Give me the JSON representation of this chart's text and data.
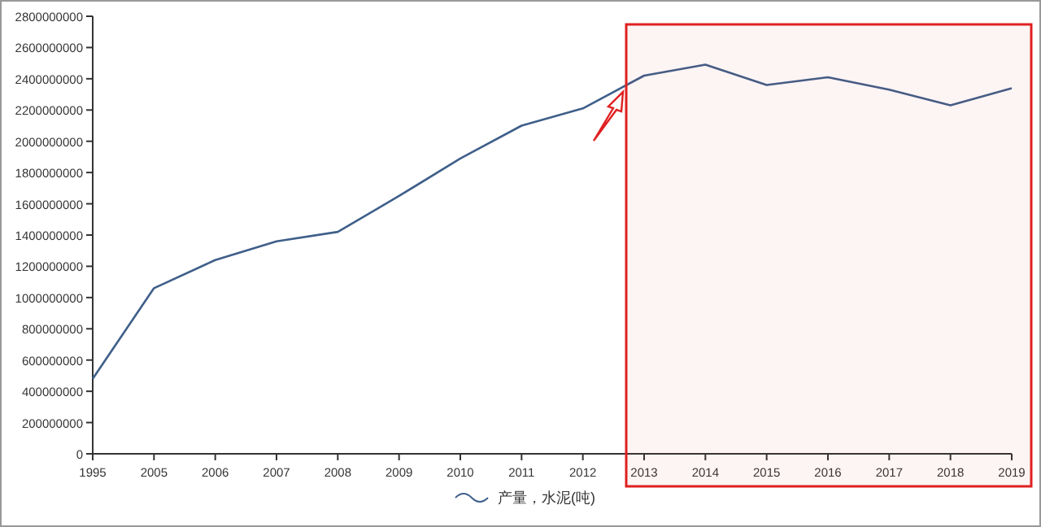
{
  "chart_data": {
    "type": "line",
    "categories": [
      "1995",
      "2005",
      "2006",
      "2007",
      "2008",
      "2009",
      "2010",
      "2011",
      "2012",
      "2013",
      "2014",
      "2015",
      "2016",
      "2017",
      "2018",
      "2019"
    ],
    "series": [
      {
        "name": "产量，水泥(吨)",
        "color": "#3f5f8a",
        "values": [
          480000000,
          1060000000,
          1240000000,
          1360000000,
          1420000000,
          1650000000,
          1890000000,
          2100000000,
          2210000000,
          2420000000,
          2490000000,
          2360000000,
          2410000000,
          2330000000,
          2230000000,
          2340000000
        ]
      }
    ],
    "ylim": [
      0,
      2800000000
    ],
    "yticks": [
      0,
      200000000,
      400000000,
      600000000,
      800000000,
      1000000000,
      1200000000,
      1400000000,
      1600000000,
      1800000000,
      2000000000,
      2200000000,
      2400000000,
      2600000000,
      2800000000
    ],
    "bands": [
      {
        "axis": "x",
        "from": "2013",
        "to": "2019",
        "color": "#e02020"
      }
    ],
    "grid": false,
    "legend": "bottom",
    "marker": "none",
    "line_style": "solid"
  }
}
